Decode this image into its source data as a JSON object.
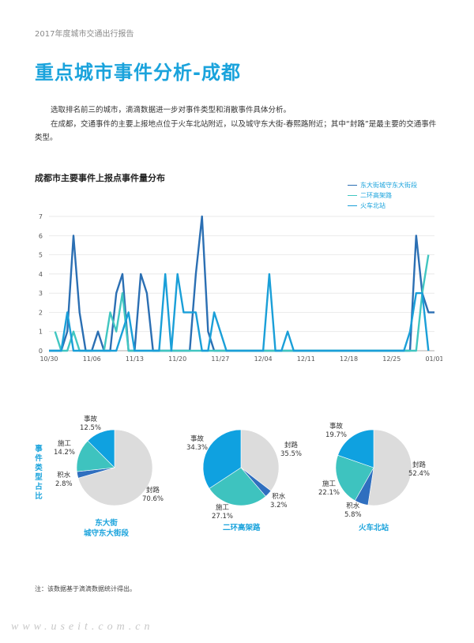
{
  "header": "2017年度城市交通出行报告",
  "title": "重点城市事件分析-成都",
  "paragraphs": [
    "选取排名前三的城市，滴滴数据进一步对事件类型和消散事件具体分析。",
    "在成都，交通事件的主要上报地点位于火车北站附近，以及城守东大街-春熙路附近；其中“封路”是最主要的交通事件类型。"
  ],
  "note": "注：该数据基于滴滴数据统计得出。",
  "watermark": "www.useit.com.cn",
  "colors": {
    "accent": "#1aa3dc",
    "series_dongdajie": "#2b6fb3",
    "series_erhuan": "#41c6c1",
    "series_huochebeizhan": "#1a9fd8",
    "pie_fenglu": "#dcdcdc",
    "pie_jishui": "#2f6fbf",
    "pie_shigong": "#3ec3bf",
    "pie_shigu": "#0fa1e0"
  },
  "chart_data": [
    {
      "type": "line",
      "title": "成都市主要事件上报点事件量分布",
      "ylim": [
        0,
        7
      ],
      "yticks": [
        "0",
        "1",
        "2",
        "3",
        "4",
        "5",
        "6",
        "7"
      ],
      "x_start": "10/30",
      "x_end": "01/01",
      "xticks": [
        "10/30",
        "11/06",
        "11/13",
        "11/20",
        "11/27",
        "12/04",
        "12/11",
        "12/18",
        "12/25",
        "01/01"
      ],
      "grid": true,
      "legend_position": "top-right",
      "series": [
        {
          "name": "东大街城守东大街段",
          "color": "#2b6fb3",
          "points": [
            [
              "10/30",
              0
            ],
            [
              "11/01",
              0
            ],
            [
              "11/02",
              1
            ],
            [
              "11/03",
              6
            ],
            [
              "11/04",
              2
            ],
            [
              "11/05",
              0
            ],
            [
              "11/06",
              0
            ],
            [
              "11/07",
              1
            ],
            [
              "11/08",
              0
            ],
            [
              "11/09",
              0
            ],
            [
              "11/10",
              3
            ],
            [
              "11/11",
              4
            ],
            [
              "11/12",
              0
            ],
            [
              "11/13",
              0
            ],
            [
              "11/14",
              4
            ],
            [
              "11/15",
              3
            ],
            [
              "11/16",
              0
            ],
            [
              "11/17",
              0
            ],
            [
              "11/18",
              0
            ],
            [
              "11/19",
              0
            ],
            [
              "11/20",
              0
            ],
            [
              "11/21",
              0
            ],
            [
              "11/22",
              0
            ],
            [
              "11/23",
              4
            ],
            [
              "11/24",
              7
            ],
            [
              "11/25",
              1
            ],
            [
              "11/26",
              0
            ],
            [
              "11/27",
              0
            ],
            [
              "12/28",
              0
            ],
            [
              "12/29",
              6
            ],
            [
              "12/30",
              3
            ],
            [
              "12/31",
              2
            ],
            [
              "01/01",
              2
            ]
          ]
        },
        {
          "name": "二环高架路",
          "color": "#41c6c1",
          "points": [
            [
              "10/31",
              1
            ],
            [
              "11/01",
              0
            ],
            [
              "11/02",
              0
            ],
            [
              "11/03",
              1
            ],
            [
              "11/04",
              0
            ],
            [
              "11/08",
              0
            ],
            [
              "11/09",
              2
            ],
            [
              "11/10",
              1
            ],
            [
              "11/11",
              3
            ],
            [
              "11/12",
              0
            ],
            [
              "11/27",
              0
            ],
            [
              "12/28",
              0
            ],
            [
              "12/29",
              0
            ],
            [
              "12/30",
              3
            ],
            [
              "12/31",
              5
            ]
          ]
        },
        {
          "name": "火车北站",
          "color": "#1a9fd8",
          "points": [
            [
              "10/30",
              0
            ],
            [
              "11/01",
              0
            ],
            [
              "11/02",
              2
            ],
            [
              "11/03",
              0
            ],
            [
              "11/06",
              0
            ],
            [
              "11/07",
              0
            ],
            [
              "11/08",
              0
            ],
            [
              "11/09",
              0
            ],
            [
              "11/10",
              0
            ],
            [
              "11/11",
              1
            ],
            [
              "11/12",
              2
            ],
            [
              "11/13",
              0
            ],
            [
              "11/17",
              0
            ],
            [
              "11/18",
              4
            ],
            [
              "11/19",
              0
            ],
            [
              "11/20",
              4
            ],
            [
              "11/21",
              2
            ],
            [
              "11/22",
              2
            ],
            [
              "11/23",
              2
            ],
            [
              "11/24",
              0
            ],
            [
              "11/25",
              0
            ],
            [
              "11/26",
              2
            ],
            [
              "11/27",
              1
            ],
            [
              "11/28",
              0
            ],
            [
              "12/04",
              0
            ],
            [
              "12/05",
              4
            ],
            [
              "12/06",
              0
            ],
            [
              "12/07",
              0
            ],
            [
              "12/08",
              1
            ],
            [
              "12/09",
              0
            ],
            [
              "12/27",
              0
            ],
            [
              "12/28",
              1
            ],
            [
              "12/29",
              3
            ],
            [
              "12/30",
              3
            ],
            [
              "12/31",
              0
            ]
          ]
        }
      ]
    },
    {
      "type": "pie",
      "name": "东大街\n城守东大街段",
      "slices": [
        {
          "label": "封路",
          "value": 70.6,
          "display": "70.6%",
          "color": "#dcdcdc"
        },
        {
          "label": "积水",
          "value": 2.8,
          "display": "2.8%",
          "color": "#2f6fbf"
        },
        {
          "label": "施工",
          "value": 14.2,
          "display": "14.2%",
          "color": "#3ec3bf"
        },
        {
          "label": "事故",
          "value": 12.5,
          "display": "12.5%",
          "color": "#0fa1e0"
        }
      ]
    },
    {
      "type": "pie",
      "name": "二环高架路",
      "slices": [
        {
          "label": "封路",
          "value": 35.5,
          "display": "35.5%",
          "color": "#dcdcdc"
        },
        {
          "label": "积水",
          "value": 3.2,
          "display": "3.2%",
          "color": "#2f6fbf"
        },
        {
          "label": "施工",
          "value": 27.1,
          "display": "27.1%",
          "color": "#3ec3bf"
        },
        {
          "label": "事故",
          "value": 34.3,
          "display": "34.3%",
          "color": "#0fa1e0"
        }
      ]
    },
    {
      "type": "pie",
      "name": "火车北站",
      "slices": [
        {
          "label": "封路",
          "value": 52.4,
          "display": "52.4%",
          "color": "#dcdcdc"
        },
        {
          "label": "积水",
          "value": 5.8,
          "display": "5.8%",
          "color": "#2f6fbf"
        },
        {
          "label": "施工",
          "value": 22.1,
          "display": "22.1%",
          "color": "#3ec3bf"
        },
        {
          "label": "事故",
          "value": 19.7,
          "display": "19.7%",
          "color": "#0fa1e0"
        }
      ]
    }
  ],
  "pie_side_label": "事件类型占比"
}
